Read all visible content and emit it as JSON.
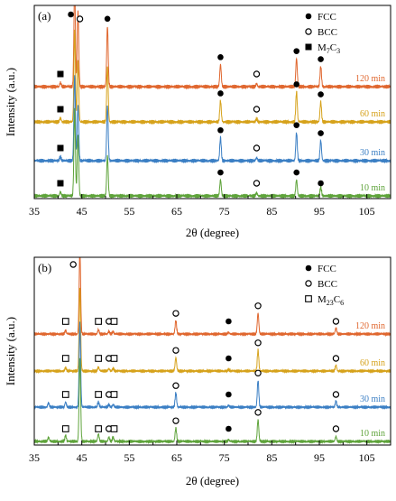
{
  "figure": {
    "colors": {
      "10 min": "#5ea33a",
      "30 min": "#3b7fc4",
      "60 min": "#d6a21b",
      "120 min": "#e0672f"
    },
    "panels": [
      {
        "label": "(a)",
        "ylabel": "Intensity (a.u.)",
        "xlabel": "2θ (degree)",
        "xlim": [
          35,
          110
        ],
        "xticks": [
          "35",
          "45",
          "55",
          "65",
          "75",
          "85",
          "95",
          "105"
        ],
        "legend": [
          {
            "symbol": "filled-circle",
            "text": "FCC"
          },
          {
            "symbol": "open-circle",
            "text": "BCC"
          },
          {
            "symbol": "filled-square",
            "text": "M",
            "sub": "7",
            "text2": "C",
            "sub2": "3"
          }
        ],
        "series": [
          {
            "name": "120 min",
            "color": "#e0672f",
            "peaks": [
              [
                40.5,
                0.04
              ],
              [
                43.5,
                1.0
              ],
              [
                44.2,
                0.75
              ],
              [
                50.4,
                0.6
              ],
              [
                74.2,
                0.22
              ],
              [
                81.8,
                0.03
              ],
              [
                90.2,
                0.28
              ],
              [
                95.3,
                0.2
              ]
            ]
          },
          {
            "name": "60 min",
            "color": "#d6a21b",
            "peaks": [
              [
                40.5,
                0.04
              ],
              [
                43.5,
                0.9
              ],
              [
                44.2,
                0.6
              ],
              [
                50.4,
                0.55
              ],
              [
                74.2,
                0.21
              ],
              [
                81.8,
                0.03
              ],
              [
                90.2,
                0.3
              ],
              [
                95.3,
                0.2
              ]
            ]
          },
          {
            "name": "30 min",
            "color": "#3b7fc4",
            "peaks": [
              [
                40.5,
                0.04
              ],
              [
                43.5,
                0.85
              ],
              [
                44.2,
                0.55
              ],
              [
                50.4,
                0.55
              ],
              [
                74.2,
                0.23
              ],
              [
                81.8,
                0.03
              ],
              [
                90.2,
                0.28
              ],
              [
                95.3,
                0.2
              ]
            ]
          },
          {
            "name": "10 min",
            "color": "#5ea33a",
            "peaks": [
              [
                40.5,
                0.04
              ],
              [
                43.5,
                0.85
              ],
              [
                44.2,
                0.6
              ],
              [
                50.4,
                0.4
              ],
              [
                74.2,
                0.16
              ],
              [
                81.8,
                0.03
              ],
              [
                90.2,
                0.16
              ],
              [
                95.3,
                0.09
              ]
            ]
          }
        ],
        "markers": [
          {
            "series": "120 min",
            "items": [
              [
                "square",
                40.5
              ],
              [
                "filled",
                42.7
              ],
              [
                "open",
                44.6
              ],
              [
                "filled",
                50.4
              ],
              [
                "filled",
                74.2
              ],
              [
                "open",
                81.8
              ],
              [
                "filled",
                90.2
              ],
              [
                "filled",
                95.3
              ]
            ]
          },
          {
            "series": "60 min",
            "items": [
              [
                "square",
                40.5
              ],
              [
                "filled",
                74.2
              ],
              [
                "open",
                81.8
              ],
              [
                "filled",
                90.2
              ],
              [
                "filled",
                95.3
              ]
            ]
          },
          {
            "series": "30 min",
            "items": [
              [
                "square",
                40.5
              ],
              [
                "filled",
                74.2
              ],
              [
                "open",
                81.8
              ],
              [
                "filled",
                90.2
              ],
              [
                "filled",
                95.3
              ]
            ]
          },
          {
            "series": "10 min",
            "items": [
              [
                "square",
                40.5
              ],
              [
                "filled",
                74.2
              ],
              [
                "open",
                81.8
              ],
              [
                "filled",
                90.2
              ],
              [
                "filled",
                95.3
              ]
            ]
          }
        ]
      },
      {
        "label": "(b)",
        "ylabel": "Intensity (a.u.)",
        "xlabel": "2θ (degree)",
        "xlim": [
          35,
          110
        ],
        "xticks": [
          "35",
          "45",
          "55",
          "65",
          "75",
          "85",
          "95",
          "105"
        ],
        "legend": [
          {
            "symbol": "filled-circle",
            "text": "FCC"
          },
          {
            "symbol": "open-circle",
            "text": "BCC"
          },
          {
            "symbol": "open-square",
            "text": "M",
            "sub": "23",
            "text2": "C",
            "sub2": "6"
          }
        ],
        "series": [
          {
            "name": "120 min",
            "color": "#e0672f",
            "peaks": [
              [
                41.6,
                0.04
              ],
              [
                44.6,
                1.0
              ],
              [
                48.5,
                0.05
              ],
              [
                50.7,
                0.03
              ],
              [
                51.6,
                0.03
              ],
              [
                64.8,
                0.16
              ],
              [
                75.9,
                0.02
              ],
              [
                82.1,
                0.25
              ],
              [
                98.5,
                0.07
              ]
            ]
          },
          {
            "name": "60 min",
            "color": "#d6a21b",
            "peaks": [
              [
                41.6,
                0.04
              ],
              [
                44.6,
                1.0
              ],
              [
                48.5,
                0.05
              ],
              [
                50.7,
                0.03
              ],
              [
                51.6,
                0.03
              ],
              [
                64.8,
                0.16
              ],
              [
                75.9,
                0.02
              ],
              [
                82.1,
                0.25
              ],
              [
                98.5,
                0.07
              ]
            ]
          },
          {
            "name": "30 min",
            "color": "#3b7fc4",
            "peaks": [
              [
                38.0,
                0.05
              ],
              [
                41.6,
                0.06
              ],
              [
                44.6,
                1.0
              ],
              [
                48.5,
                0.06
              ],
              [
                50.7,
                0.03
              ],
              [
                51.6,
                0.03
              ],
              [
                64.8,
                0.17
              ],
              [
                75.9,
                0.02
              ],
              [
                82.1,
                0.32
              ],
              [
                98.5,
                0.07
              ]
            ]
          },
          {
            "name": "10 min",
            "color": "#5ea33a",
            "peaks": [
              [
                38.0,
                0.05
              ],
              [
                41.6,
                0.07
              ],
              [
                44.6,
                1.0
              ],
              [
                48.5,
                0.09
              ],
              [
                50.7,
                0.05
              ],
              [
                51.6,
                0.05
              ],
              [
                64.8,
                0.16
              ],
              [
                75.9,
                0.02
              ],
              [
                82.1,
                0.26
              ],
              [
                98.5,
                0.06
              ]
            ]
          }
        ],
        "markers": [
          {
            "series": "120 min",
            "items": [
              [
                "osquare",
                41.6
              ],
              [
                "open",
                43.2
              ],
              [
                "osquare",
                48.5
              ],
              [
                "open",
                50.7
              ],
              [
                "osquare",
                51.8
              ],
              [
                "open",
                64.8
              ],
              [
                "filled",
                75.9
              ],
              [
                "open",
                82.1
              ],
              [
                "open",
                98.5
              ]
            ]
          },
          {
            "series": "60 min",
            "items": [
              [
                "osquare",
                41.6
              ],
              [
                "osquare",
                48.5
              ],
              [
                "open",
                50.7
              ],
              [
                "osquare",
                51.8
              ],
              [
                "open",
                64.8
              ],
              [
                "filled",
                75.9
              ],
              [
                "open",
                82.1
              ],
              [
                "open",
                98.5
              ]
            ]
          },
          {
            "series": "30 min",
            "items": [
              [
                "osquare",
                41.6
              ],
              [
                "osquare",
                48.5
              ],
              [
                "open",
                50.7
              ],
              [
                "osquare",
                51.8
              ],
              [
                "open",
                64.8
              ],
              [
                "filled",
                75.9
              ],
              [
                "open",
                82.1
              ],
              [
                "open",
                98.5
              ]
            ]
          },
          {
            "series": "10 min",
            "items": [
              [
                "osquare",
                41.6
              ],
              [
                "osquare",
                48.5
              ],
              [
                "open",
                50.7
              ],
              [
                "osquare",
                51.8
              ],
              [
                "open",
                64.8
              ],
              [
                "filled",
                75.9
              ],
              [
                "open",
                82.1
              ],
              [
                "open",
                98.5
              ]
            ]
          }
        ]
      }
    ]
  }
}
